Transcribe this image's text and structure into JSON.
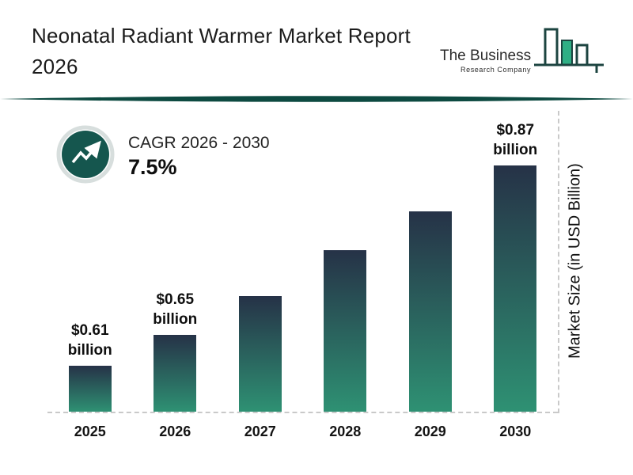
{
  "header": {
    "title_line1": "Neonatal Radiant Warmer Market Report",
    "title_line2": "2026",
    "logo": {
      "name": "The Business",
      "subtitle": "Research Company"
    }
  },
  "cagr": {
    "label": "CAGR 2026 - 2030",
    "value": "7.5%"
  },
  "chart_data": {
    "type": "bar",
    "title": "Neonatal Radiant Warmer Market Report 2026",
    "categories": [
      "2025",
      "2026",
      "2027",
      "2028",
      "2029",
      "2030"
    ],
    "values": [
      0.61,
      0.65,
      0.7,
      0.76,
      0.81,
      0.87
    ],
    "bar_labels": [
      "$0.61 billion",
      "$0.65 billion",
      "",
      "",
      "",
      "$0.87 billion"
    ],
    "xlabel": "",
    "ylabel": "Market Size (in USD Billion)",
    "ylim": [
      0.55,
      0.9
    ],
    "grid": false,
    "legend": "none",
    "colors": {
      "bar_top": "#263247",
      "bar_bottom": "#2e9173",
      "accent_teal": "#15564e",
      "divider": "#0d4a41",
      "logo_green": "#2faf85",
      "logo_outline": "#1c4440",
      "dash_gray": "#c9c9c9"
    }
  }
}
